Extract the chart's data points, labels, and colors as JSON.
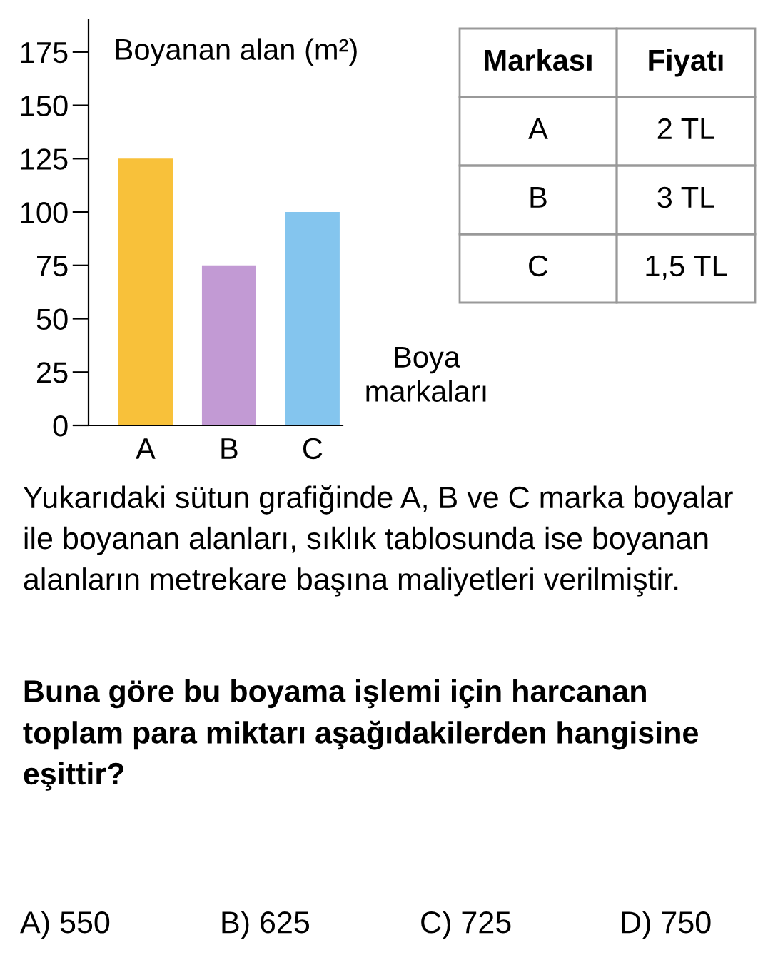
{
  "chart_data": [
    {
      "type": "bar",
      "ylabel": "Boyanan alan (m²)",
      "xlabel": "Boya markaları",
      "categories": [
        "A",
        "B",
        "C"
      ],
      "values": [
        125,
        75,
        100
      ],
      "colors": [
        "#f8c13a",
        "#c29ad4",
        "#84c5ee"
      ],
      "ylim": [
        0,
        190
      ],
      "yticks": [
        0,
        25,
        50,
        75,
        100,
        125,
        150,
        175
      ],
      "grid": false
    },
    {
      "type": "other",
      "annotations": [
        "Markası",
        "Fiyatı",
        "A",
        "2 TL",
        "B",
        "3 TL",
        "C",
        "1,5 TL"
      ]
    },
    {
      "type": "other",
      "annotations": [
        "Yukarıdaki sütun grafiğinde A, B ve C marka boyalar ile boyanan alanları, sıklık tablosunda ise boyanan alanların metrekare başına maliyetleri verilmiştir.",
        "Buna göre bu boyama işlemi için harcanan toplam para miktarı aşağıdakilerden hangisine eşittir?",
        "A) 550",
        "B) 625",
        "C) 725",
        "D) 750"
      ]
    }
  ]
}
